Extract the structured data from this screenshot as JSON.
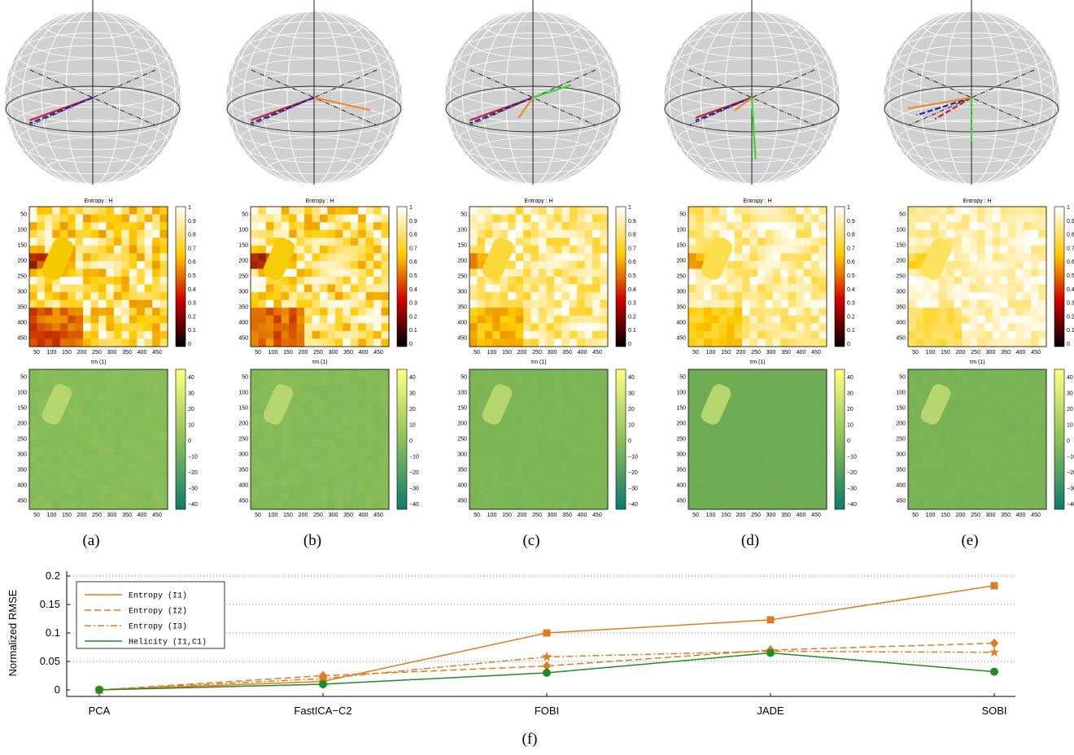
{
  "panels": [
    {
      "id": "a",
      "caption": "(a)",
      "heat_bias": 0.0,
      "helicity_tone": "#8cbf5a",
      "sphere_lines": [
        {
          "color": "#cc1f1f",
          "az": 208,
          "el": -24,
          "len": 0.9,
          "dash": false
        },
        {
          "color": "#2323b4",
          "az": 206,
          "el": -26,
          "len": 0.9,
          "dash": true
        }
      ]
    },
    {
      "id": "b",
      "caption": "(b)",
      "heat_bias": 0.05,
      "helicity_tone": "#89bd59",
      "sphere_lines": [
        {
          "color": "#cc1f1f",
          "az": 208,
          "el": -24,
          "len": 0.9,
          "dash": false
        },
        {
          "color": "#2323b4",
          "az": 206,
          "el": -26,
          "len": 0.9,
          "dash": true
        },
        {
          "color": "#f08a2b",
          "az": 330,
          "el": -18,
          "len": 0.78,
          "dash": false
        }
      ]
    },
    {
      "id": "c",
      "caption": "(c)",
      "heat_bias": 0.35,
      "helicity_tone": "#80b756",
      "sphere_lines": [
        {
          "color": "#cc1f1f",
          "az": 208,
          "el": -24,
          "len": 0.9,
          "dash": false
        },
        {
          "color": "#2323b4",
          "az": 206,
          "el": -26,
          "len": 0.9,
          "dash": true
        },
        {
          "color": "#f08a2b",
          "az": 250,
          "el": -38,
          "len": 0.62,
          "dash": false
        },
        {
          "color": "#38d92e",
          "az": 20,
          "el": 22,
          "len": 0.5,
          "dash": false
        }
      ]
    },
    {
      "id": "d",
      "caption": "(d)",
      "heat_bias": 0.45,
      "helicity_tone": "#6fad54",
      "sphere_lines": [
        {
          "color": "#cc1f1f",
          "az": 208,
          "el": -24,
          "len": 0.8,
          "dash": false
        },
        {
          "color": "#2323b4",
          "az": 206,
          "el": -26,
          "len": 0.8,
          "dash": true
        },
        {
          "color": "#f08a2b",
          "az": 245,
          "el": -30,
          "len": 0.55,
          "dash": false
        },
        {
          "color": "#38d92e",
          "az": 285,
          "el": -80,
          "len": 0.95,
          "dash": false
        }
      ]
    },
    {
      "id": "e",
      "caption": "(e)",
      "heat_bias": 0.6,
      "helicity_tone": "#7cb556",
      "sphere_lines": [
        {
          "color": "#cc1f1f",
          "az": 225,
          "el": -32,
          "len": 0.7,
          "dash": true
        },
        {
          "color": "#2323b4",
          "az": 205,
          "el": -22,
          "len": 0.75,
          "dash": true
        },
        {
          "color": "#f08a2b",
          "az": 200,
          "el": -14,
          "len": 0.8,
          "dash": false
        },
        {
          "color": "#38d92e",
          "az": 270,
          "el": -72,
          "len": 0.72,
          "dash": true
        }
      ]
    }
  ],
  "entropy_title": "Entropy : H",
  "axis_caption": "τm (1)",
  "image_ticks": [
    "50",
    "100",
    "150",
    "200",
    "250",
    "300",
    "350",
    "400",
    "450"
  ],
  "image_xticks": [
    "50",
    "100",
    "150",
    "200",
    "250",
    "300",
    "350",
    "400",
    "450"
  ],
  "entropy_cbar_ticks": [
    "1",
    "0.9",
    "0.8",
    "0.7",
    "0.6",
    "0.5",
    "0.4",
    "0.3",
    "0.2",
    "0.1",
    "0"
  ],
  "helicity_cbar_ticks": [
    "40",
    "30",
    "20",
    "10",
    "0",
    "−10",
    "−20",
    "−30",
    "−40"
  ],
  "colors": {
    "entropy_orange": "#e07b1f",
    "helicity_green": "#228b22",
    "sphere_fill": "#cfcfcf",
    "sphere_grid": "#ffffff"
  },
  "chart_data": {
    "type": "line",
    "caption": "(f)",
    "ylabel": "Normalized RMSE",
    "xlabel": "",
    "categories": [
      "PCA",
      "FastICA−C2",
      "FOBI",
      "JADE",
      "SOBI"
    ],
    "ylim": [
      0,
      0.2
    ],
    "yticks": [
      "0",
      "0.05",
      "0.1",
      "0.15",
      "0.2"
    ],
    "grid": true,
    "legend_position": "top-left",
    "series": [
      {
        "name": "Entropy (I1)",
        "values": [
          0,
          0.015,
          0.1,
          0.123,
          0.183
        ],
        "style": "solid",
        "marker": "square",
        "color": "#e07b1f"
      },
      {
        "name": "Entropy (I2)",
        "values": [
          0,
          0.025,
          0.042,
          0.07,
          0.082
        ],
        "style": "dashed",
        "marker": "diamond",
        "color": "#e07b1f"
      },
      {
        "name": "Entropy (I3)",
        "values": [
          0,
          0.02,
          0.058,
          0.068,
          0.066
        ],
        "style": "dashdot",
        "marker": "star",
        "color": "#e07b1f"
      },
      {
        "name": "Helicity (I1,C1)",
        "values": [
          0,
          0.01,
          0.03,
          0.065,
          0.032
        ],
        "style": "solid",
        "marker": "circle",
        "color": "#228b22"
      }
    ]
  }
}
